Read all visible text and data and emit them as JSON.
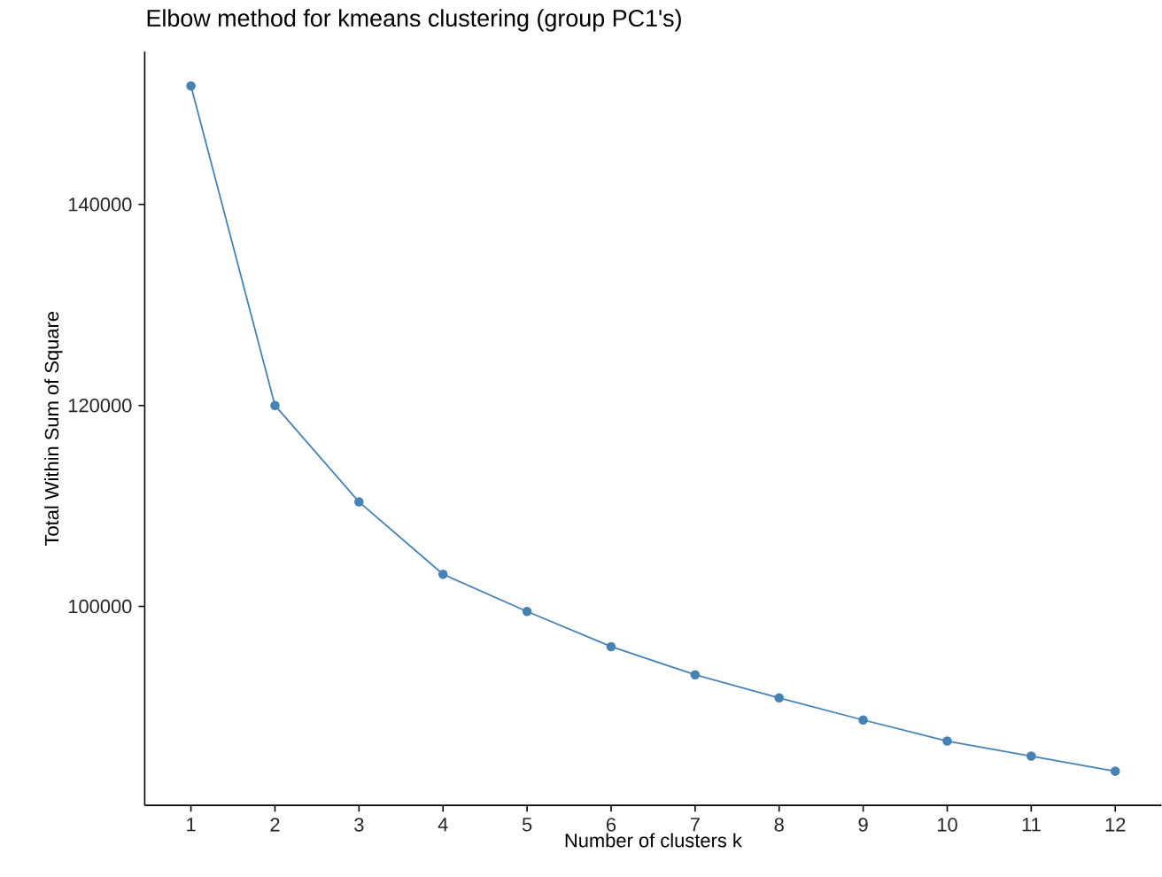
{
  "chart_data": {
    "type": "line",
    "title": "Elbow method for kmeans clustering (group PC1's)",
    "xlabel": "Number of clusters k",
    "ylabel": "Total Within Sum of Square",
    "x": [
      1,
      2,
      3,
      4,
      5,
      6,
      7,
      8,
      9,
      10,
      11,
      12
    ],
    "values": [
      151800,
      120000,
      110400,
      103200,
      99500,
      96000,
      93200,
      90900,
      88700,
      86600,
      85100,
      83600
    ],
    "color": "#4682b4",
    "marker": "circle",
    "line_style": "solid",
    "xlim": [
      0.45,
      12.55
    ],
    "ylim": [
      80200,
      155200
    ],
    "xticks": [
      1,
      2,
      3,
      4,
      5,
      6,
      7,
      8,
      9,
      10,
      11,
      12
    ],
    "yticks": [
      100000,
      120000,
      140000
    ]
  }
}
